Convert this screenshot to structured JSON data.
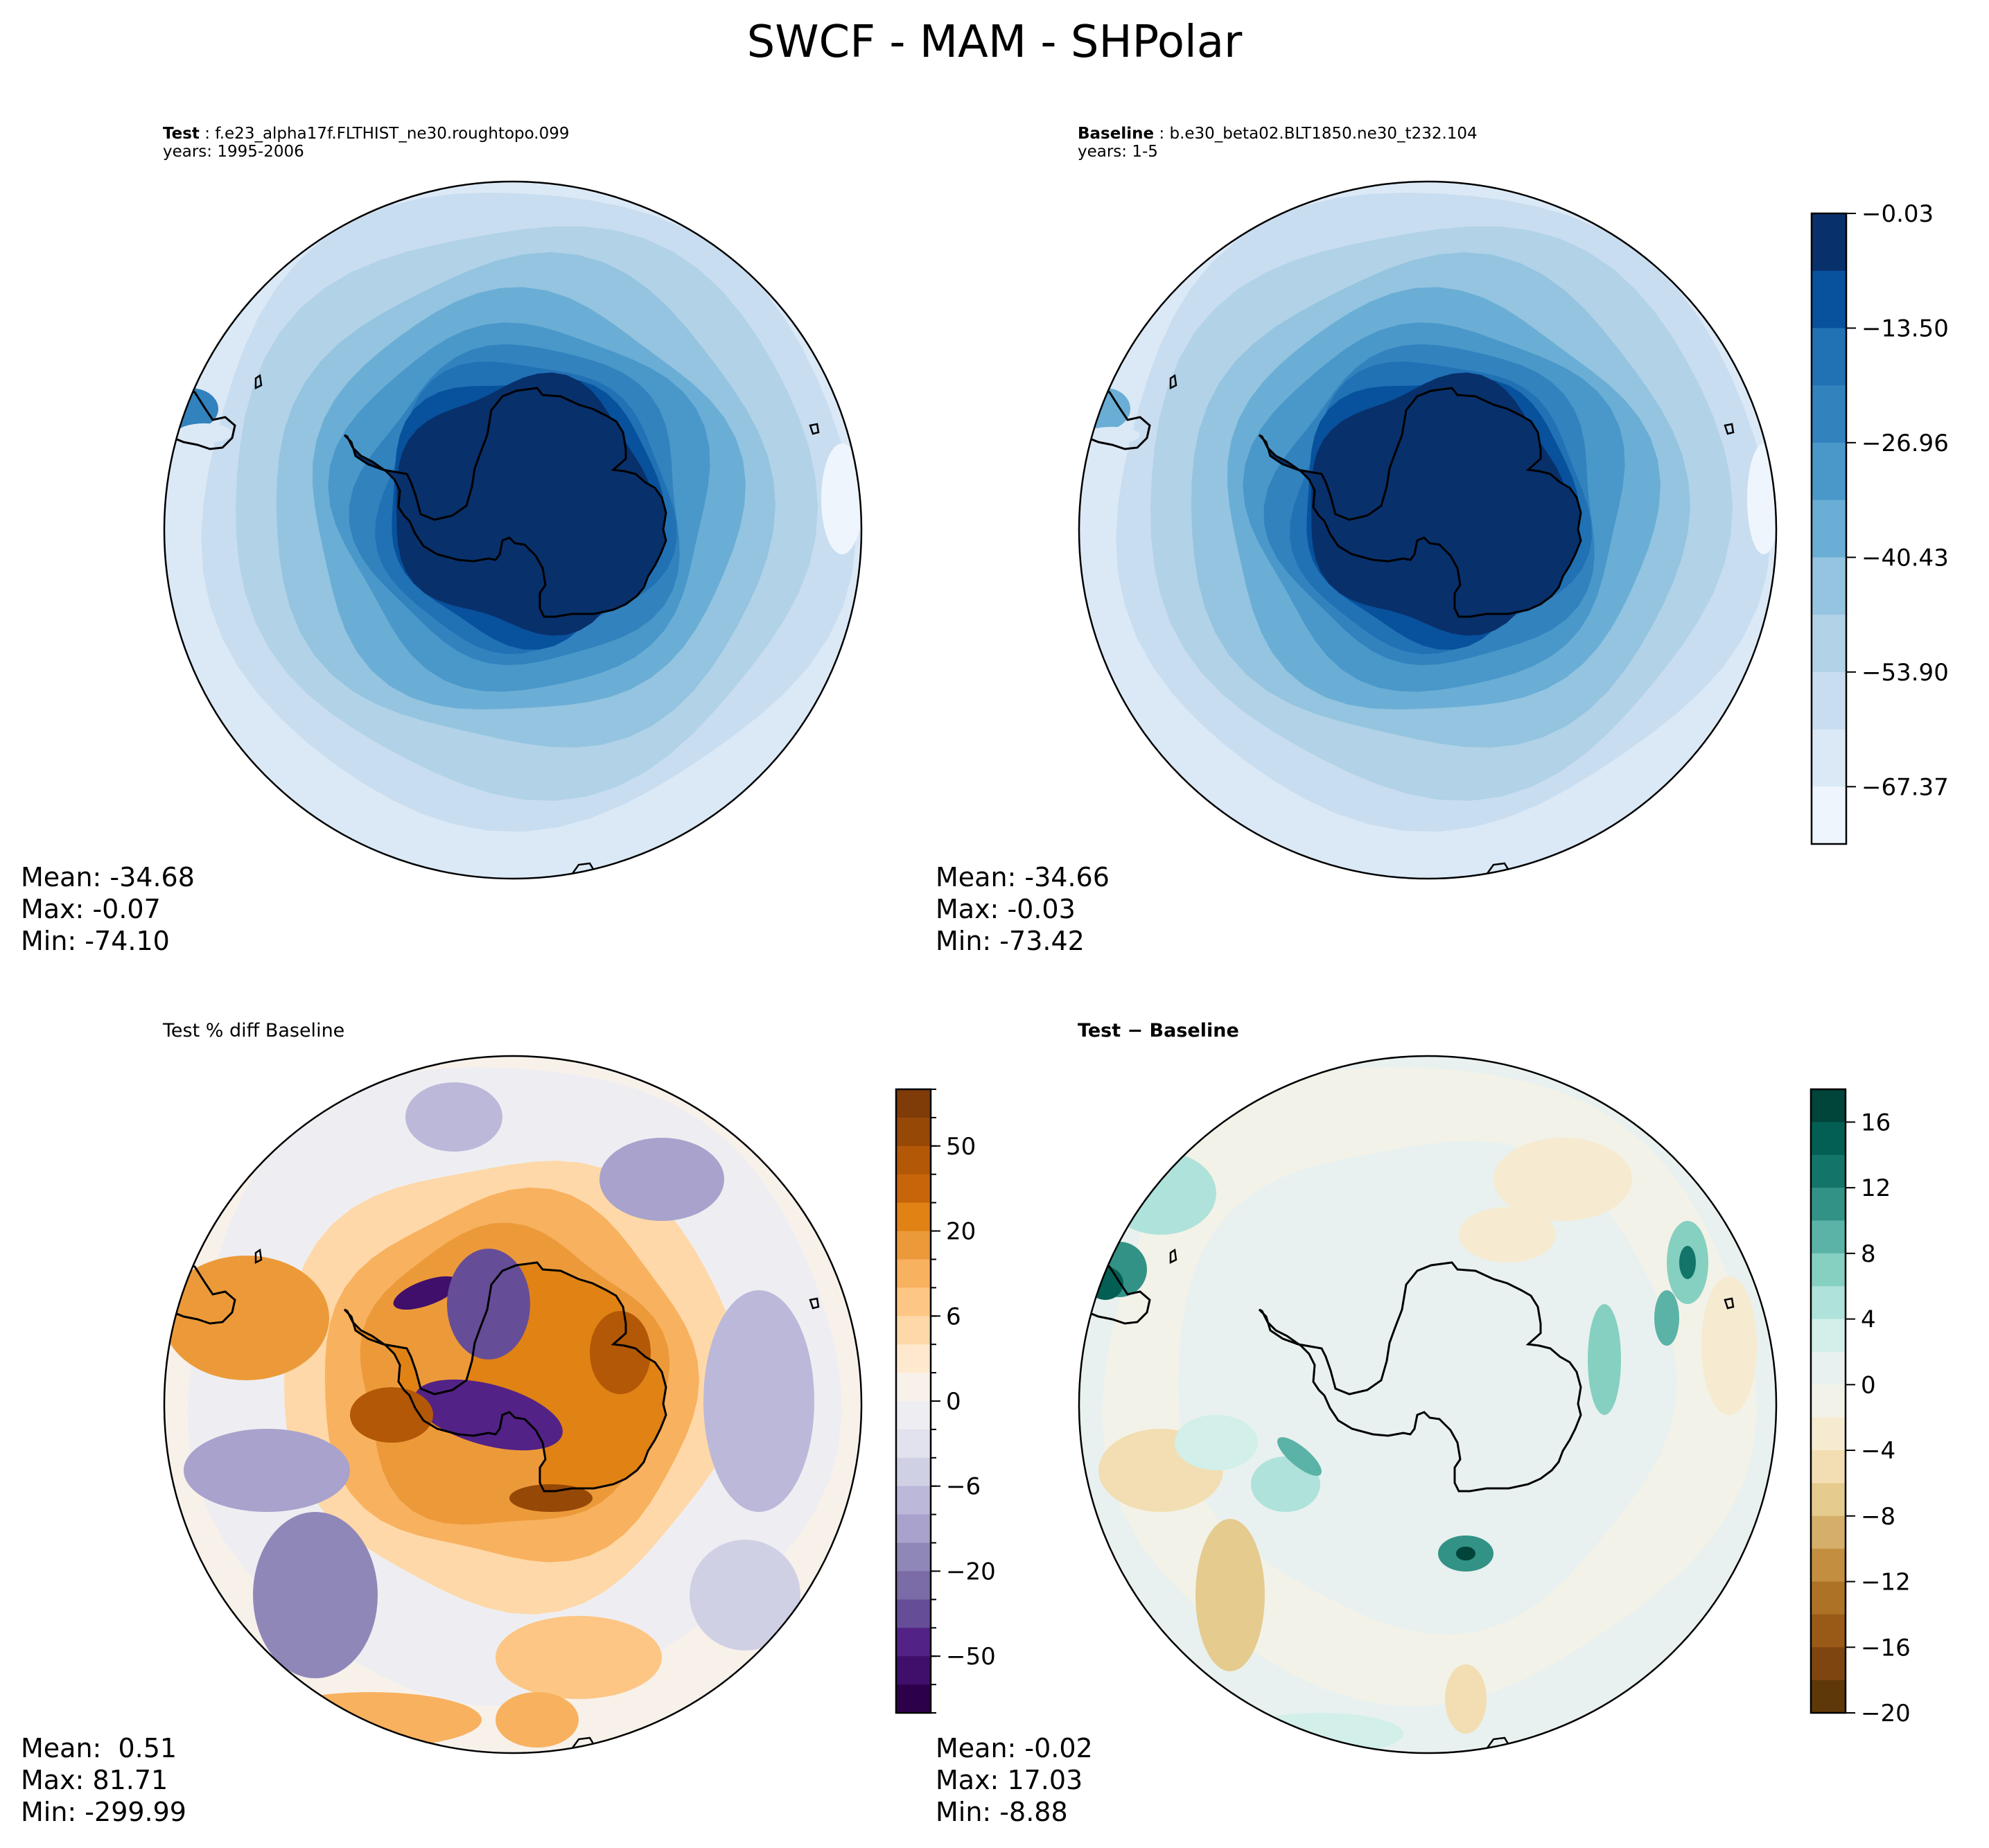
{
  "suptitle": "SWCF - MAM - SHPolar",
  "panels": {
    "test": {
      "label_bold": "Test",
      "case": "f.e23_alpha17f.FLTHIST_ne30.roughtopo.099",
      "years": "years: 1995-2006",
      "stats": {
        "mean": "Mean: -34.68",
        "max": "Max: -0.07",
        "min": "Min: -74.10"
      }
    },
    "baseline": {
      "label_bold": "Baseline",
      "case": "b.e30_beta02.BLT1850.ne30_t232.104",
      "years": "years: 1-5",
      "stats": {
        "mean": "Mean: -34.66",
        "max": "Max: -0.03",
        "min": "Min: -73.42"
      }
    },
    "pctdiff": {
      "title": "Test % diff Baseline",
      "stats": {
        "mean": "Mean:  0.51",
        "max": "Max: 81.71",
        "min": "Min: -299.99"
      }
    },
    "diff": {
      "title": "Test − Baseline",
      "stats": {
        "mean": "Mean: -0.02",
        "max": "Max: 17.03",
        "min": "Min: -8.88"
      }
    }
  },
  "chart_data": [
    {
      "type": "heatmap",
      "title": "Test: f.e23_alpha17f.FLTHIST_ne30.roughtopo.099",
      "projection": "South Polar Stereographic",
      "variable": "SWCF",
      "season": "MAM",
      "region": "SHPolar",
      "stats": {
        "mean": -34.68,
        "max": -0.07,
        "min": -74.1
      },
      "pattern": "rings of increasing magnitude toward Antarctic coast; continent near 0, ocean -40 to -74",
      "colormap": "Blues_r",
      "levels_shared_colorbar": "baseline"
    },
    {
      "type": "heatmap",
      "title": "Baseline: b.e30_beta02.BLT1850.ne30_t232.104",
      "stats": {
        "mean": -34.66,
        "max": -0.03,
        "min": -73.42
      },
      "colorbar": {
        "ticks": [
          -0.03,
          -13.5,
          -26.96,
          -40.43,
          -53.9,
          -67.37
        ],
        "tick_labels": [
          "−0.03",
          "−13.50",
          "−26.96",
          "−40.43",
          "−53.90",
          "−67.37"
        ],
        "range": [
          -74.1,
          -0.03
        ],
        "n_levels": 11,
        "colors": [
          "#08306b",
          "#08519c",
          "#2171b5",
          "#3282be",
          "#4a98c9",
          "#6aaed6",
          "#94c4df",
          "#b1d2e7",
          "#c9ddf0",
          "#dbe9f6",
          "#eef5fc"
        ]
      }
    },
    {
      "type": "heatmap",
      "title": "Test % diff Baseline",
      "stats": {
        "mean": 0.51,
        "max": 81.71,
        "min": -299.99
      },
      "colorbar": {
        "ticks": [
          50,
          20,
          6,
          0,
          -6,
          -20,
          -50
        ],
        "tick_labels": [
          "50",
          "20",
          "6",
          "0",
          "−6",
          "−20",
          "−50"
        ],
        "n_levels": 22,
        "colors": [
          "#7f3b08",
          "#964807",
          "#b35806",
          "#c8650a",
          "#e08214",
          "#ec9a39",
          "#f8b15f",
          "#fdc684",
          "#fed8a8",
          "#fee9cf",
          "#f7f1ea",
          "#eeeef2",
          "#e2e2ee",
          "#d0d0e5",
          "#bcb8da",
          "#a8a2cc",
          "#9087b9",
          "#7b6ba6",
          "#664d98",
          "#532286",
          "#3f0f6b",
          "#2d004b"
        ]
      }
    },
    {
      "type": "heatmap",
      "title": "Test − Baseline",
      "stats": {
        "mean": -0.02,
        "max": 17.03,
        "min": -8.88
      },
      "colorbar": {
        "ticks": [
          16,
          12,
          8,
          4,
          0,
          -4,
          -8,
          -12,
          -16,
          -20
        ],
        "tick_labels": [
          "16",
          "12",
          "8",
          "4",
          "0",
          "−4",
          "−8",
          "−12",
          "−16",
          "−20"
        ],
        "range": [
          -20,
          18
        ],
        "n_levels": 19,
        "colors": [
          "#00443a",
          "#035f53",
          "#137569",
          "#329286",
          "#5ab3a6",
          "#86d0c1",
          "#afe2da",
          "#d2efe9",
          "#e8f1ef",
          "#f3f2e8",
          "#f6ead0",
          "#f2deb2",
          "#e6cb8f",
          "#d5ae6a",
          "#c48e41",
          "#ad7226",
          "#995a17",
          "#7f4510",
          "#5e3809"
        ]
      }
    }
  ]
}
